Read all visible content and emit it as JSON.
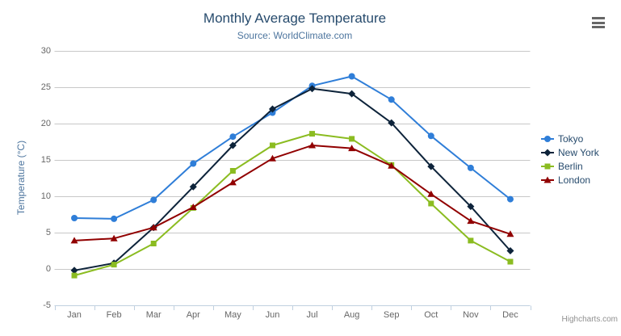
{
  "chart": {
    "credits_label": "Highcharts.com"
  },
  "icons": {
    "context_menu": "hamburger-icon"
  },
  "colors": {
    "title": "#274b6d",
    "subtitle": "#4d759e",
    "axis_title": "#4d759e",
    "tick_label": "#666666",
    "gridline": "#c8c8c8",
    "x_axis_line": "#c0d0e0",
    "legend_text": "#274b6d",
    "credits": "#909090",
    "menu_icon": "#666666"
  },
  "chart_data": {
    "type": "line",
    "title": "Monthly Average Temperature",
    "subtitle": "Source: WorldClimate.com",
    "categories": [
      "Jan",
      "Feb",
      "Mar",
      "Apr",
      "May",
      "Jun",
      "Jul",
      "Aug",
      "Sep",
      "Oct",
      "Nov",
      "Dec"
    ],
    "series": [
      {
        "name": "Tokyo",
        "color": "#2f7ed8",
        "marker": "circle",
        "values": [
          7.0,
          6.9,
          9.5,
          14.5,
          18.2,
          21.5,
          25.2,
          26.5,
          23.3,
          18.3,
          13.9,
          9.6
        ]
      },
      {
        "name": "New York",
        "color": "#0d233a",
        "marker": "diamond",
        "values": [
          -0.2,
          0.8,
          5.7,
          11.3,
          17.0,
          22.0,
          24.8,
          24.1,
          20.1,
          14.1,
          8.6,
          2.5
        ]
      },
      {
        "name": "Berlin",
        "color": "#8bbc21",
        "marker": "square",
        "values": [
          -0.9,
          0.6,
          3.5,
          8.4,
          13.5,
          17.0,
          18.6,
          17.9,
          14.3,
          9.0,
          3.9,
          1.0
        ]
      },
      {
        "name": "London",
        "color": "#910000",
        "marker": "triangle",
        "values": [
          3.9,
          4.2,
          5.7,
          8.5,
          11.9,
          15.2,
          17.0,
          16.6,
          14.2,
          10.3,
          6.6,
          4.8
        ]
      }
    ],
    "xlabel": "",
    "ylabel": "Temperature (°C)",
    "ylim": [
      -5,
      30
    ],
    "yticks": [
      -5,
      0,
      5,
      10,
      15,
      20,
      25,
      30
    ],
    "grid": "horizontal",
    "legend_position": "right"
  }
}
